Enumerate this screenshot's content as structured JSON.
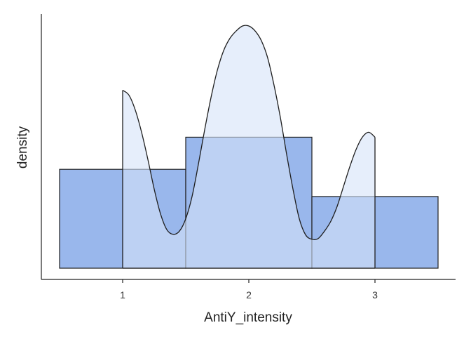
{
  "chart_data": {
    "type": "bar",
    "xlabel": "AntiY_intensity",
    "ylabel": "density",
    "xlim": [
      0.3,
      4.0
    ],
    "ylim": [
      0,
      0.98
    ],
    "x_ticks": [
      1,
      2,
      3
    ],
    "x_tick_labels": [
      "1",
      "2",
      "3"
    ],
    "y_ticks_shown": false,
    "grid": false,
    "bars": [
      {
        "x0": 0.5,
        "x1": 1.5,
        "value": 0.4
      },
      {
        "x0": 1.5,
        "x1": 2.5,
        "value": 0.53
      },
      {
        "x0": 2.5,
        "x1": 3.5,
        "value": 0.29
      }
    ],
    "density": {
      "x": [
        1.0,
        1.05,
        1.1,
        1.15,
        1.2,
        1.25,
        1.3,
        1.35,
        1.4,
        1.45,
        1.5,
        1.55,
        1.6,
        1.65,
        1.7,
        1.75,
        1.8,
        1.85,
        1.9,
        1.95,
        2.0,
        2.05,
        2.1,
        2.15,
        2.2,
        2.25,
        2.3,
        2.35,
        2.4,
        2.45,
        2.5,
        2.55,
        2.6,
        2.65,
        2.7,
        2.75,
        2.8,
        2.85,
        2.9,
        2.95,
        3.0
      ],
      "y": [
        0.72,
        0.7,
        0.64,
        0.55,
        0.44,
        0.32,
        0.22,
        0.156,
        0.137,
        0.15,
        0.2,
        0.29,
        0.42,
        0.56,
        0.69,
        0.8,
        0.88,
        0.93,
        0.96,
        0.98,
        0.98,
        0.96,
        0.92,
        0.85,
        0.74,
        0.61,
        0.46,
        0.32,
        0.2,
        0.135,
        0.117,
        0.12,
        0.15,
        0.19,
        0.25,
        0.33,
        0.41,
        0.48,
        0.53,
        0.55,
        0.53
      ]
    },
    "colors": {
      "bar_fill": "#99b7ec",
      "density_fill": "#d5e2f8",
      "outline": "#1e1e1e",
      "axis": "#222222"
    }
  }
}
